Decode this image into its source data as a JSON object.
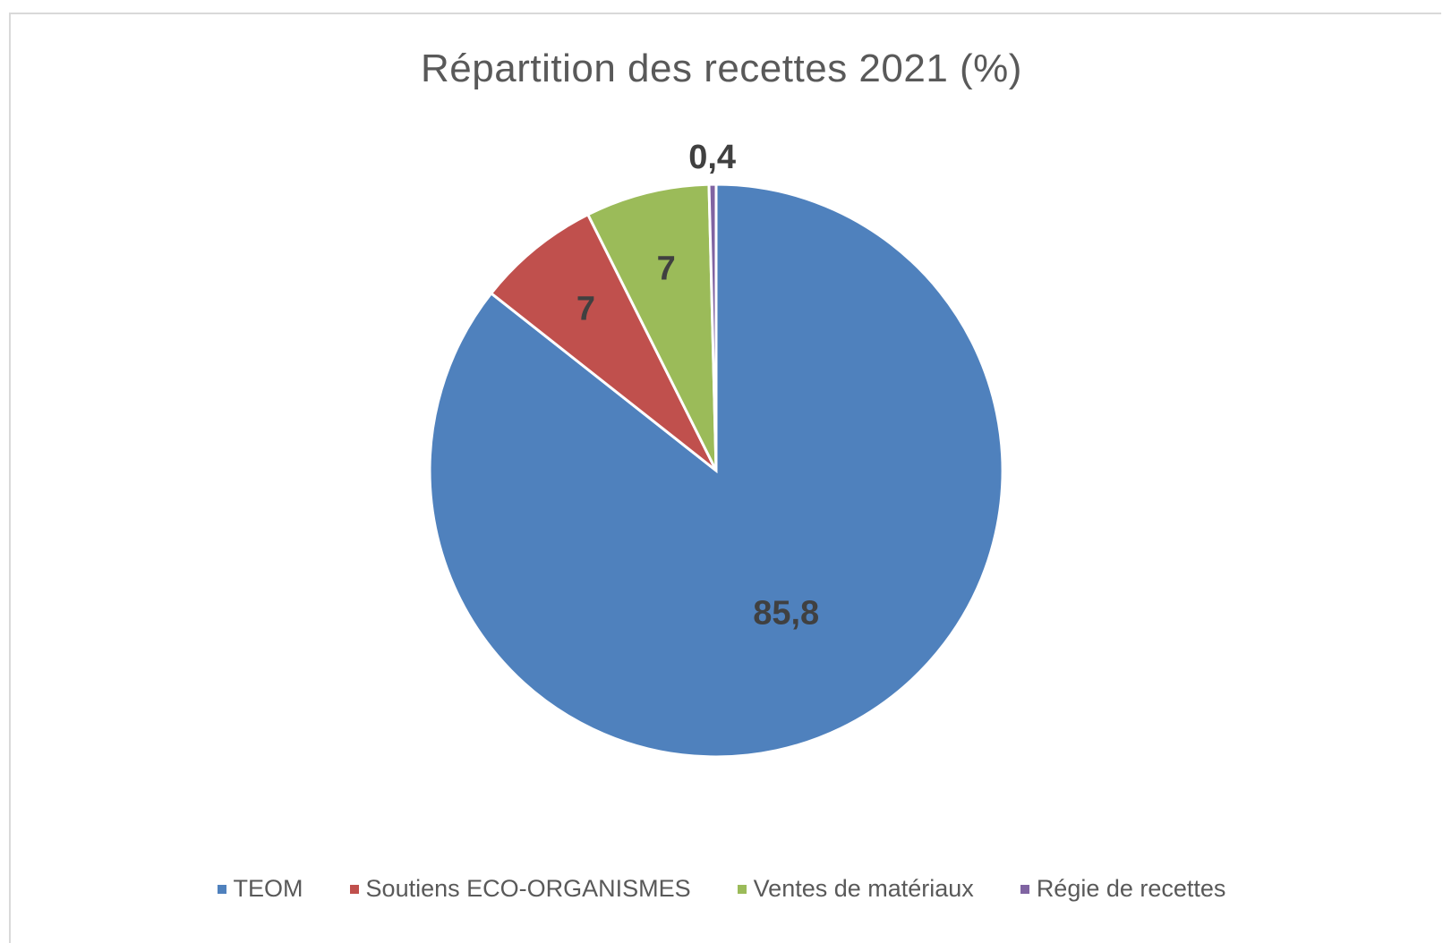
{
  "chart_data": {
    "type": "pie",
    "title": "Répartition des recettes 2021 (%)",
    "categories": [
      "TEOM",
      "Soutiens ECO-ORGANISMES",
      "Ventes de matériaux",
      "Régie de recettes"
    ],
    "values": [
      85.8,
      7,
      7,
      0.4
    ],
    "data_labels": [
      "85,8",
      "7",
      "7",
      "0,4"
    ],
    "colors": [
      "#4f81bd",
      "#c0504d",
      "#9bbb59",
      "#8064a2"
    ],
    "legend_position": "bottom",
    "start_angle": "12 o'clock",
    "direction": "clockwise"
  }
}
